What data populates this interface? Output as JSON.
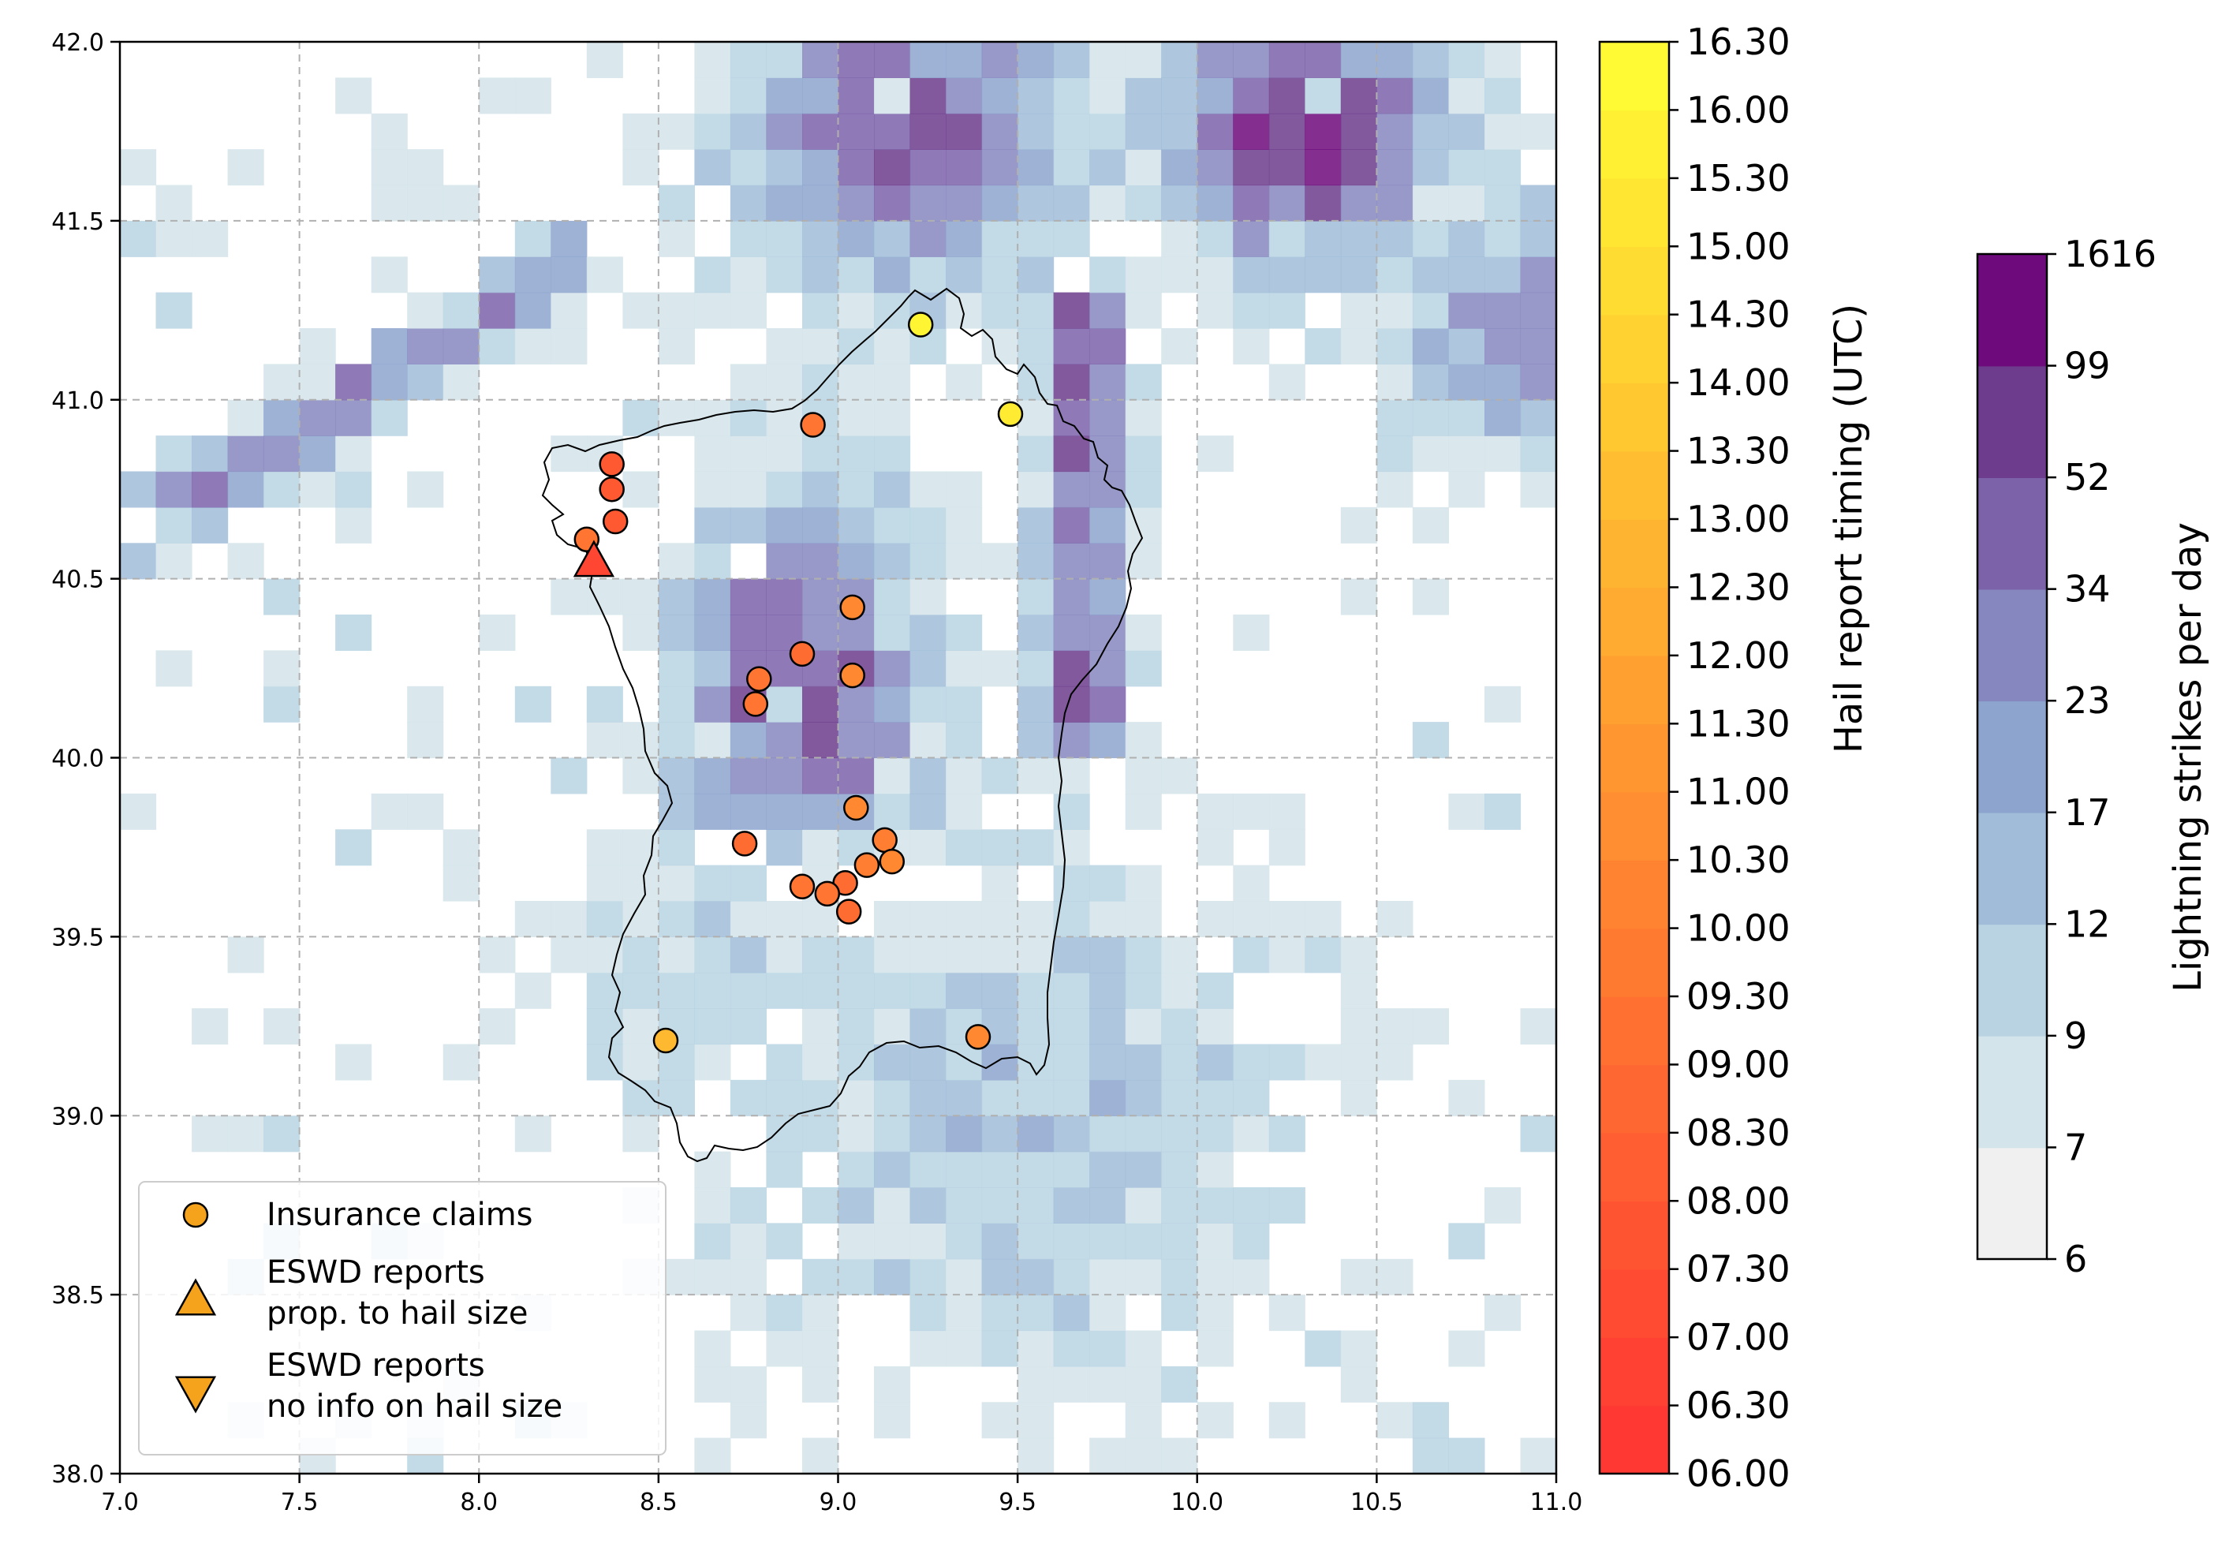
{
  "map": {
    "x_ticks": [
      "7.0",
      "7.5",
      "8.0",
      "8.5",
      "9.0",
      "9.5",
      "10.0",
      "10.5",
      "11.0"
    ],
    "y_ticks": [
      "38.0",
      "38.5",
      "39.0",
      "39.5",
      "40.0",
      "40.5",
      "41.0",
      "41.5",
      "42.0"
    ],
    "xlim": [
      7.0,
      11.0
    ],
    "ylim": [
      38.0,
      42.0
    ],
    "grid": true,
    "grid_cell_deg": 0.1
  },
  "legend": {
    "placement": "lower-left",
    "items": [
      {
        "label_lines": [
          "Insurance claims"
        ],
        "marker": "circle"
      },
      {
        "label_lines": [
          "ESWD reports",
          " prop. to hail size"
        ],
        "marker": "triangle-up"
      },
      {
        "label_lines": [
          "ESWD reports",
          " no info on hail size"
        ],
        "marker": "triangle-down"
      }
    ],
    "marker_color": "#f5a31d"
  },
  "timing_colorbar": {
    "label": "Hail report timing (UTC)",
    "ticks": [
      "06.00",
      "06.30",
      "07.00",
      "07.30",
      "08.00",
      "08.30",
      "09.00",
      "09.30",
      "10.00",
      "10.30",
      "11.00",
      "11.30",
      "12.00",
      "12.30",
      "13.00",
      "13.30",
      "14.00",
      "14.30",
      "15.00",
      "15.30",
      "16.00",
      "16.30"
    ],
    "color_low": "#ff3333",
    "color_mid": "#ffa030",
    "color_high": "#ffff33"
  },
  "lightning_colorbar": {
    "label": "Lightning strikes per day",
    "ticks": [
      "6",
      "7",
      "9",
      "12",
      "17",
      "23",
      "34",
      "52",
      "99",
      "1616"
    ],
    "colors": [
      "#f0f0f0",
      "#d3e4ea",
      "#b9d3e3",
      "#a0bcd8",
      "#8da4ce",
      "#8687bf",
      "#7b62a9",
      "#6d3c8c",
      "#6e0a7c"
    ]
  },
  "hail_reports": [
    {
      "type": "insurance",
      "lon": 9.23,
      "lat": 41.21,
      "time": "16.00"
    },
    {
      "type": "insurance",
      "lon": 9.48,
      "lat": 40.96,
      "time": "15.30"
    },
    {
      "type": "insurance",
      "lon": 8.93,
      "lat": 40.93,
      "time": "09.30"
    },
    {
      "type": "insurance",
      "lon": 8.37,
      "lat": 40.82,
      "time": "08.00"
    },
    {
      "type": "insurance",
      "lon": 8.37,
      "lat": 40.75,
      "time": "08.00"
    },
    {
      "type": "insurance",
      "lon": 8.38,
      "lat": 40.66,
      "time": "08.00"
    },
    {
      "type": "insurance",
      "lon": 8.3,
      "lat": 40.61,
      "time": "09.30"
    },
    {
      "type": "insurance",
      "lon": 9.04,
      "lat": 40.42,
      "time": "10.30"
    },
    {
      "type": "insurance",
      "lon": 8.9,
      "lat": 40.29,
      "time": "09.00"
    },
    {
      "type": "insurance",
      "lon": 9.04,
      "lat": 40.23,
      "time": "10.30"
    },
    {
      "type": "insurance",
      "lon": 8.78,
      "lat": 40.22,
      "time": "09.30"
    },
    {
      "type": "insurance",
      "lon": 8.77,
      "lat": 40.15,
      "time": "09.30"
    },
    {
      "type": "insurance",
      "lon": 9.05,
      "lat": 39.86,
      "time": "10.30"
    },
    {
      "type": "insurance",
      "lon": 9.13,
      "lat": 39.77,
      "time": "10.00"
    },
    {
      "type": "insurance",
      "lon": 8.74,
      "lat": 39.76,
      "time": "09.00"
    },
    {
      "type": "insurance",
      "lon": 9.15,
      "lat": 39.71,
      "time": "10.30"
    },
    {
      "type": "insurance",
      "lon": 9.08,
      "lat": 39.7,
      "time": "10.00"
    },
    {
      "type": "insurance",
      "lon": 9.02,
      "lat": 39.65,
      "time": "09.00"
    },
    {
      "type": "insurance",
      "lon": 8.9,
      "lat": 39.64,
      "time": "09.30"
    },
    {
      "type": "insurance",
      "lon": 8.97,
      "lat": 39.62,
      "time": "09.30"
    },
    {
      "type": "insurance",
      "lon": 9.03,
      "lat": 39.57,
      "time": "09.00"
    },
    {
      "type": "insurance",
      "lon": 8.52,
      "lat": 39.21,
      "time": "13.00"
    },
    {
      "type": "insurance",
      "lon": 9.39,
      "lat": 39.22,
      "time": "10.30"
    },
    {
      "type": "eswd_size",
      "lon": 8.32,
      "lat": 40.55,
      "time": "07.00"
    }
  ]
}
